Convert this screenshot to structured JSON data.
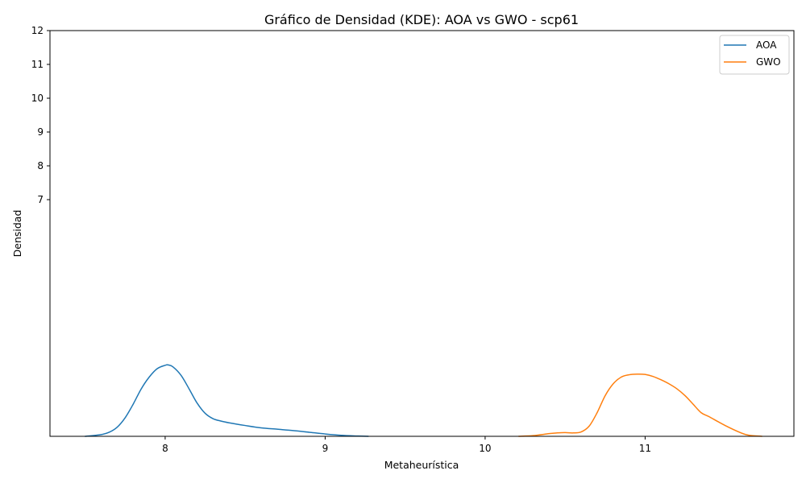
{
  "chart_data": {
    "type": "line",
    "title": "Gráfico de Densidad (KDE): AOA vs GWO - scp61",
    "xlabel": "Metaheurística",
    "ylabel": "Densidad",
    "xlim": [
      7.28,
      11.93
    ],
    "ylim": [
      0,
      12
    ],
    "x_ticks": [
      {
        "value": 8,
        "label": "8"
      },
      {
        "value": 9,
        "label": "9"
      },
      {
        "value": 10,
        "label": "10"
      },
      {
        "value": 11,
        "label": "11"
      }
    ],
    "y_ticks": [
      {
        "value": 7,
        "label": "7"
      },
      {
        "value": 8,
        "label": "8"
      },
      {
        "value": 9,
        "label": "9"
      },
      {
        "value": 10,
        "label": "10"
      },
      {
        "value": 11,
        "label": "11"
      },
      {
        "value": 12,
        "label": "12"
      }
    ],
    "grid": false,
    "legend_position": "top-right",
    "series": [
      {
        "name": "AOA",
        "color": "#1f77b4",
        "x": [
          7.5,
          7.6,
          7.65,
          7.7,
          7.75,
          7.8,
          7.85,
          7.9,
          7.95,
          8.0,
          8.02,
          8.05,
          8.1,
          8.15,
          8.2,
          8.25,
          8.3,
          8.35,
          8.4,
          8.5,
          8.6,
          8.7,
          8.8,
          8.9,
          9.0,
          9.1,
          9.2,
          9.27
        ],
        "y": [
          0.0,
          0.05,
          0.12,
          0.27,
          0.55,
          0.95,
          1.4,
          1.75,
          2.0,
          2.1,
          2.11,
          2.05,
          1.8,
          1.4,
          0.98,
          0.68,
          0.52,
          0.45,
          0.4,
          0.32,
          0.25,
          0.21,
          0.17,
          0.12,
          0.07,
          0.03,
          0.01,
          0.0
        ]
      },
      {
        "name": "GWO",
        "color": "#ff7f0e",
        "x": [
          10.21,
          10.3,
          10.4,
          10.45,
          10.5,
          10.55,
          10.6,
          10.65,
          10.7,
          10.75,
          10.8,
          10.85,
          10.9,
          10.95,
          11.0,
          11.05,
          11.1,
          11.15,
          11.2,
          11.25,
          11.3,
          11.35,
          11.4,
          11.5,
          11.6,
          11.65,
          11.73
        ],
        "y": [
          0.0,
          0.02,
          0.08,
          0.1,
          0.11,
          0.1,
          0.13,
          0.3,
          0.7,
          1.2,
          1.55,
          1.75,
          1.82,
          1.84,
          1.83,
          1.77,
          1.67,
          1.55,
          1.4,
          1.2,
          0.95,
          0.7,
          0.58,
          0.32,
          0.1,
          0.03,
          0.0
        ]
      }
    ]
  }
}
